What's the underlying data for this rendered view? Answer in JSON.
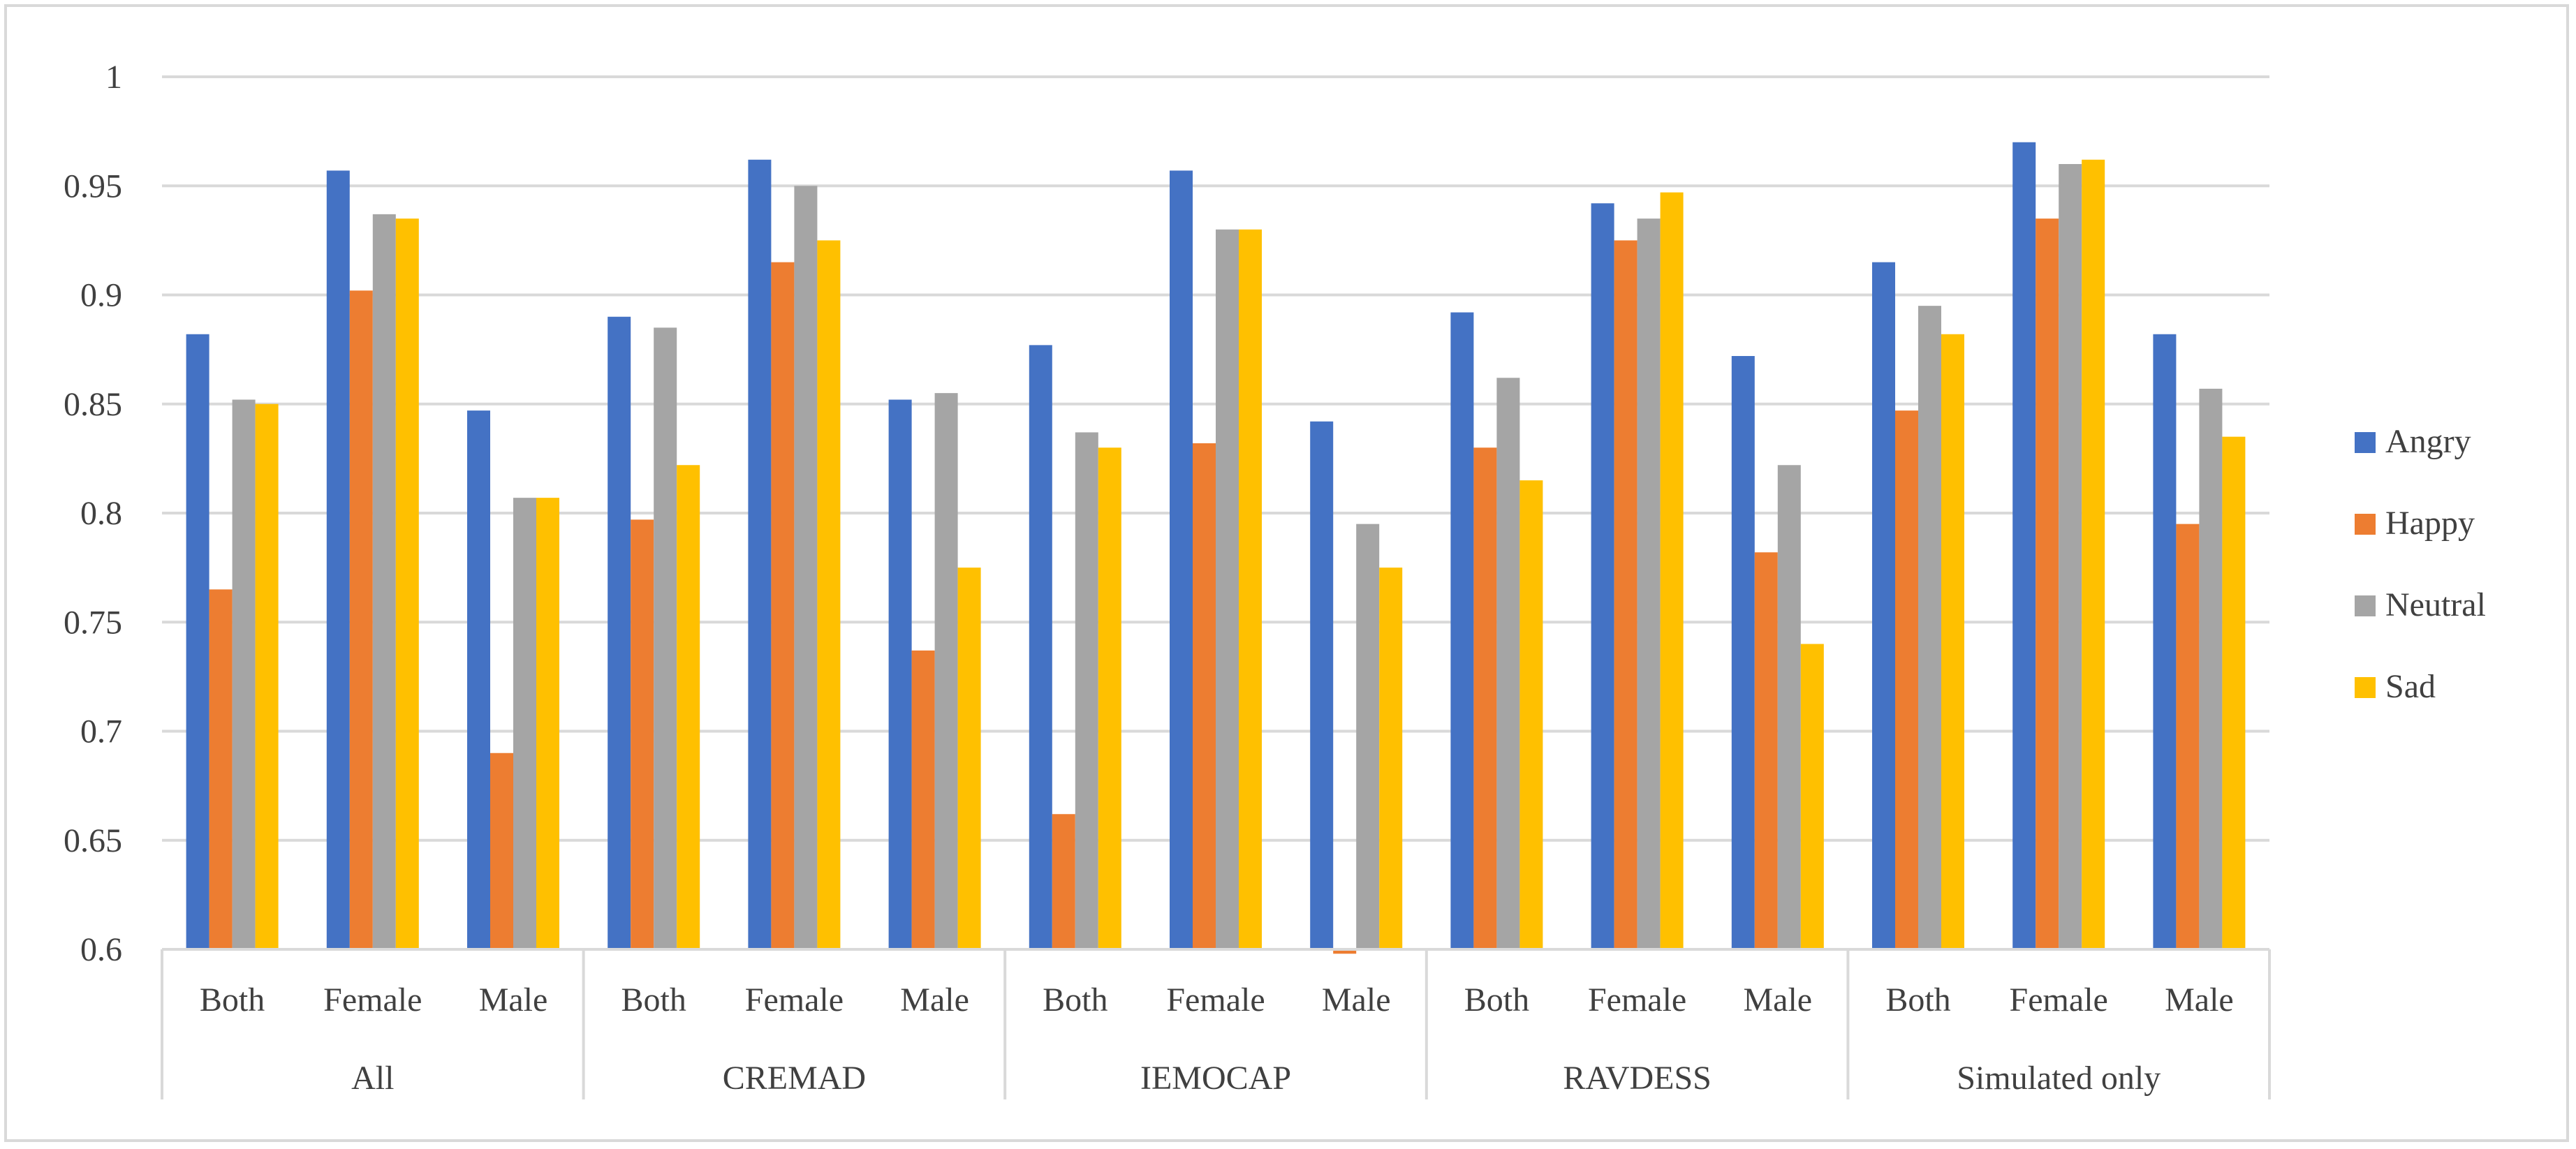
{
  "chart_data": {
    "type": "bar",
    "title": "",
    "xlabel": "",
    "ylabel": "",
    "ylim": [
      0.6,
      1
    ],
    "ytick_step": 0.05,
    "yticks": [
      "0.6",
      "0.65",
      "0.7",
      "0.75",
      "0.8",
      "0.85",
      "0.9",
      "0.95",
      "1"
    ],
    "grid": "horizontal",
    "legend_position": "right",
    "groups": [
      {
        "label": "All",
        "categories": [
          "Both",
          "Female",
          "Male"
        ]
      },
      {
        "label": "CREMAD",
        "categories": [
          "Both",
          "Female",
          "Male"
        ]
      },
      {
        "label": "IEMOCAP",
        "categories": [
          "Both",
          "Female",
          "Male"
        ]
      },
      {
        "label": "RAVDESS",
        "categories": [
          "Both",
          "Female",
          "Male"
        ]
      },
      {
        "label": "Simulated only",
        "categories": [
          "Both",
          "Female",
          "Male"
        ]
      }
    ],
    "series": [
      {
        "name": "Angry",
        "color": "#4472C4",
        "values": [
          0.882,
          0.957,
          0.847,
          0.89,
          0.962,
          0.852,
          0.877,
          0.957,
          0.842,
          0.892,
          0.942,
          0.872,
          0.915,
          0.97,
          0.882
        ]
      },
      {
        "name": "Happy",
        "color": "#ED7D31",
        "values": [
          0.765,
          0.902,
          0.69,
          0.797,
          0.915,
          0.737,
          0.662,
          0.832,
          0.598,
          0.83,
          0.925,
          0.782,
          0.847,
          0.935,
          0.795
        ]
      },
      {
        "name": "Neutral",
        "color": "#A5A5A5",
        "values": [
          0.852,
          0.937,
          0.807,
          0.885,
          0.95,
          0.855,
          0.837,
          0.93,
          0.795,
          0.862,
          0.935,
          0.822,
          0.895,
          0.96,
          0.857
        ]
      },
      {
        "name": "Sad",
        "color": "#FFC000",
        "values": [
          0.85,
          0.935,
          0.807,
          0.822,
          0.925,
          0.775,
          0.83,
          0.93,
          0.775,
          0.815,
          0.947,
          0.74,
          0.882,
          0.962,
          0.835
        ]
      }
    ]
  }
}
